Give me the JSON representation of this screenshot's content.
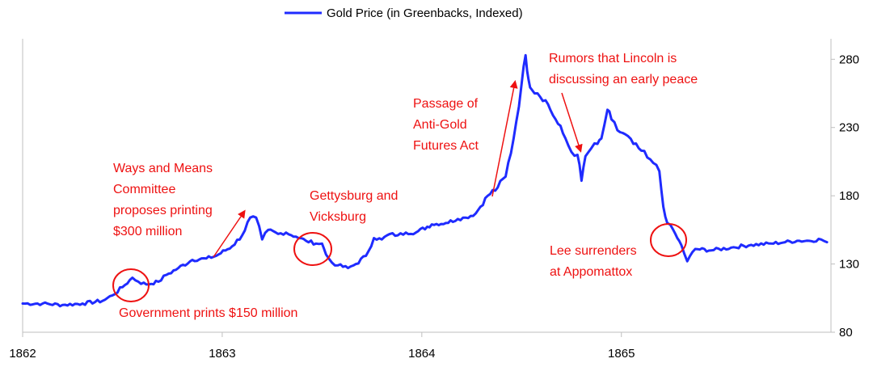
{
  "chart_data": {
    "type": "line",
    "legend": {
      "label": "Gold Price (in Greenbacks, Indexed)",
      "position": "top-center",
      "color": "#1f2bff"
    },
    "x_axis": {
      "ticks": [
        "1862",
        "1863",
        "1864",
        "1865"
      ],
      "range": [
        1862.0,
        1866.05
      ]
    },
    "y_axis": {
      "side": "right",
      "ticks": [
        "80",
        "130",
        "180",
        "230",
        "280"
      ],
      "range": [
        80,
        295
      ]
    },
    "grid": false,
    "series": [
      {
        "name": "Gold Price (in Greenbacks, Indexed)",
        "color": "#1f2bff",
        "x": [
          1862.0,
          1862.1,
          1862.2,
          1862.3,
          1862.4,
          1862.45,
          1862.5,
          1862.55,
          1862.58,
          1862.62,
          1862.68,
          1862.72,
          1862.78,
          1862.85,
          1862.92,
          1862.97,
          1863.05,
          1863.1,
          1863.14,
          1863.17,
          1863.2,
          1863.23,
          1863.28,
          1863.32,
          1863.37,
          1863.42,
          1863.47,
          1863.5,
          1863.52,
          1863.55,
          1863.58,
          1863.63,
          1863.67,
          1863.72,
          1863.76,
          1863.8,
          1863.84,
          1863.88,
          1863.92,
          1863.97,
          1864.05,
          1864.12,
          1864.18,
          1864.22,
          1864.27,
          1864.33,
          1864.38,
          1864.42,
          1864.46,
          1864.5,
          1864.52,
          1864.535,
          1864.55,
          1864.58,
          1864.62,
          1864.67,
          1864.72,
          1864.75,
          1864.78,
          1864.8,
          1864.82,
          1864.85,
          1864.88,
          1864.9,
          1864.93,
          1864.95,
          1864.98,
          1865.02,
          1865.06,
          1865.1,
          1865.13,
          1865.16,
          1865.19,
          1865.21,
          1865.23,
          1865.26,
          1865.28,
          1865.3,
          1865.33,
          1865.37,
          1865.45,
          1865.55,
          1865.65,
          1865.75,
          1865.82,
          1865.88,
          1865.94,
          1866.0,
          1866.03
        ],
        "y": [
          101,
          101,
          100,
          101,
          103,
          107,
          113,
          120,
          117,
          115,
          117,
          122,
          127,
          133,
          134,
          136,
          143,
          151,
          164,
          164,
          148,
          155,
          152,
          153,
          150,
          147,
          145,
          145,
          137,
          131,
          129,
          127,
          130,
          136,
          149,
          148,
          152,
          151,
          153,
          153,
          159,
          160,
          163,
          164,
          167,
          180,
          186,
          194,
          222,
          262,
          283,
          265,
          258,
          255,
          250,
          236,
          222,
          212,
          210,
          191,
          209,
          215,
          218,
          222,
          243,
          236,
          228,
          225,
          218,
          213,
          208,
          204,
          198,
          172,
          160,
          155,
          149,
          144,
          132,
          141,
          140,
          142,
          144,
          145,
          146,
          147,
          147,
          148,
          146
        ]
      }
    ],
    "annotations": [
      {
        "lines": [
          "Ways and Means",
          "Committee",
          "proposes printing",
          "$300 million"
        ],
        "arrow": true
      },
      {
        "lines": [
          "Gettysburg and",
          "Vicksburg"
        ],
        "circle": true
      },
      {
        "lines": [
          "Passage of",
          "Anti-Gold",
          "Futures Act"
        ],
        "arrow": true
      },
      {
        "lines": [
          "Rumors that Lincoln is",
          "discussing an early peace"
        ],
        "arrow": true
      },
      {
        "lines": [
          "Lee surrenders",
          "at Appomattox"
        ],
        "circle": true
      },
      {
        "lines": [
          "Government prints $150 million"
        ],
        "circle": true
      }
    ],
    "annotation_color": "#ee1111"
  }
}
